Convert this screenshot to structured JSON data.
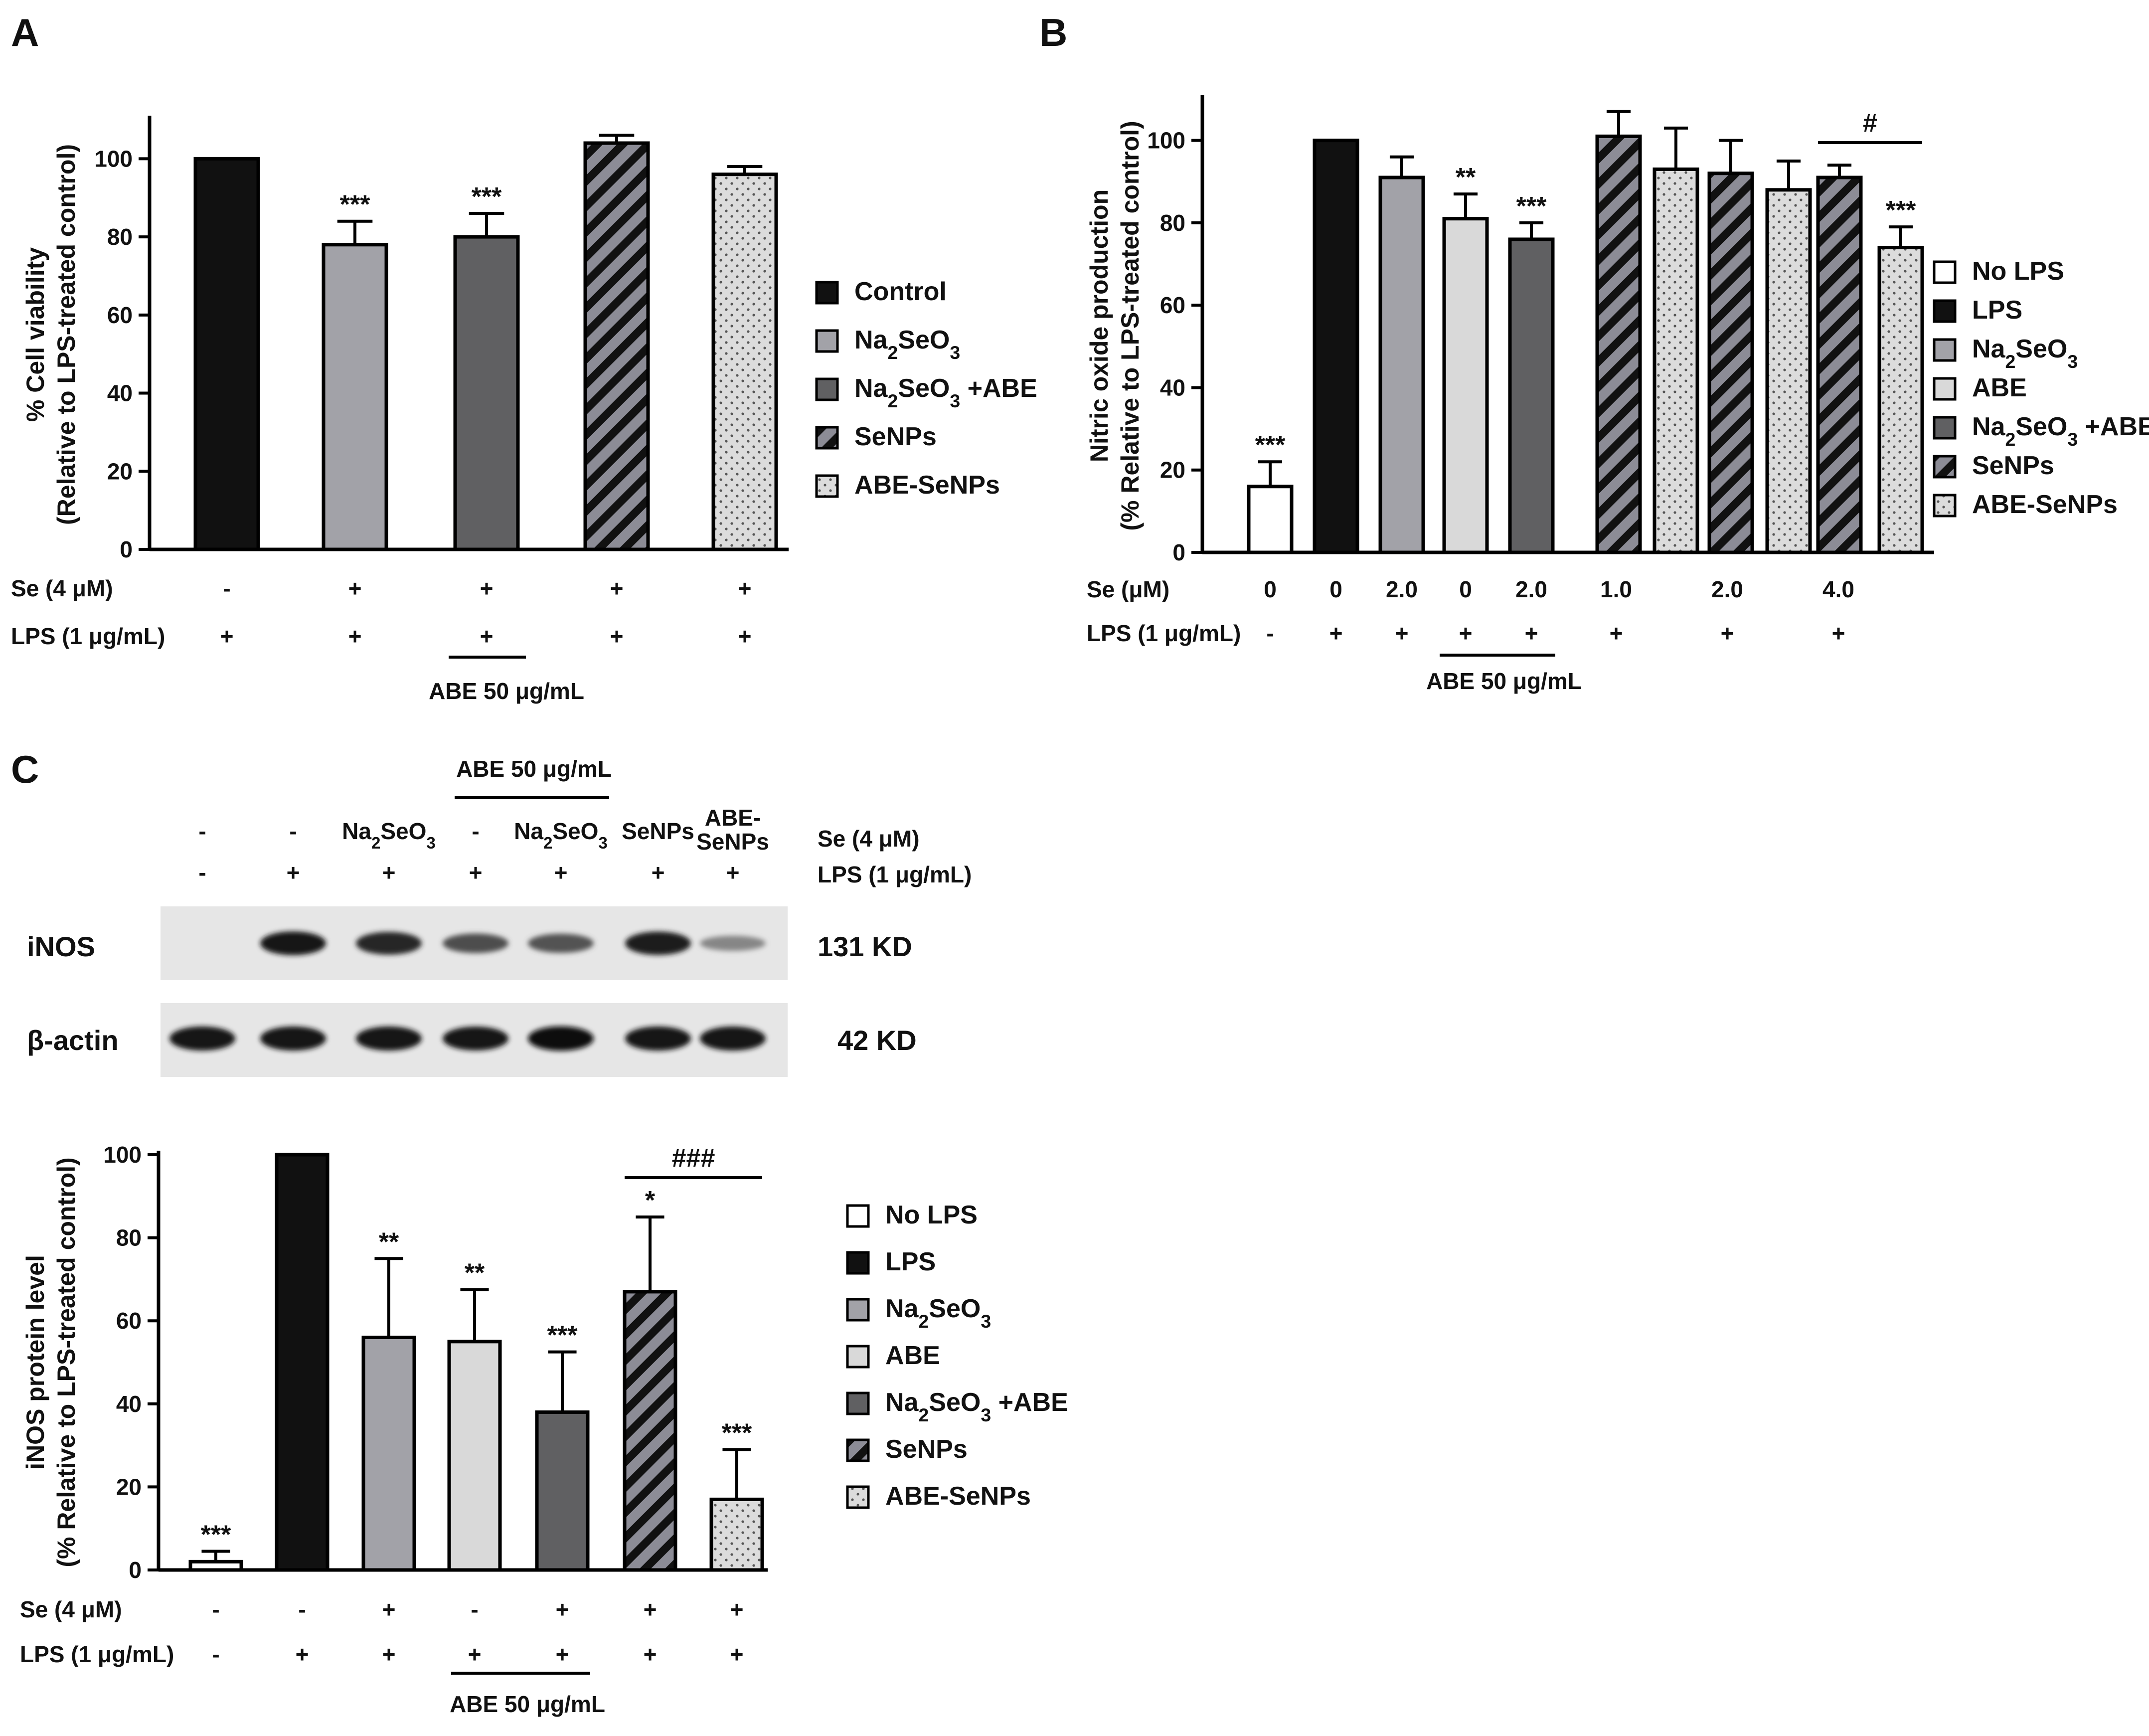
{
  "figure": {
    "panels": [
      {
        "id": "A",
        "label": "A"
      },
      {
        "id": "B",
        "label": "B"
      },
      {
        "id": "C",
        "label": "C"
      }
    ]
  },
  "colors": {
    "black": "#111111",
    "medium_gray": "#a2a2a8",
    "dark_gray": "#606062",
    "light_gray": "#d9d9d9",
    "white": "#ffffff",
    "stripe_base": "#8c8c96",
    "dot_base": "#dcdcdc"
  },
  "fill_legend": {
    "black": "solid black",
    "gray": "solid medium gray",
    "dark": "solid dark gray",
    "light": "solid light gray",
    "white": "white",
    "stripe": "diagonal hatching",
    "dots": "stippled"
  },
  "chart_data": [
    {
      "id": "A",
      "type": "bar",
      "ylabel_lines": [
        "% Cell viability",
        "(Relative to LPS-treated control)"
      ],
      "ylim": [
        0,
        110
      ],
      "yticks": [
        0,
        20,
        40,
        60,
        80,
        100
      ],
      "categories": [
        "Control",
        "Na2SeO3",
        "Na2SeO3+ABE",
        "SeNPs",
        "ABE-SeNPs"
      ],
      "values": [
        100,
        78,
        80,
        104,
        96
      ],
      "errors": [
        0,
        6,
        6,
        2,
        2
      ],
      "fills": [
        "black",
        "gray",
        "dark",
        "stripe",
        "dots"
      ],
      "significance": [
        "",
        "***",
        "***",
        "",
        ""
      ],
      "condition_rows": [
        {
          "label": "Se (4 μM)",
          "values": [
            "-",
            "+",
            "+",
            "+",
            "+"
          ]
        },
        {
          "label": "LPS (1 μg/mL)",
          "values": [
            "+",
            "+",
            "+",
            "+",
            "+"
          ]
        }
      ],
      "abe_label": "ABE 50 μg/mL",
      "legend": [
        {
          "text": "Control",
          "fill": "black"
        },
        {
          "text": "Na2SeO3",
          "fill": "gray"
        },
        {
          "text": "Na2SeO3 +ABE",
          "fill": "dark"
        },
        {
          "text": "SeNPs",
          "fill": "stripe"
        },
        {
          "text": "ABE-SeNPs",
          "fill": "dots"
        }
      ]
    },
    {
      "id": "B",
      "type": "bar",
      "ylabel_lines": [
        "Nitric oxide production",
        "(% Relative to LPS-treated control)"
      ],
      "ylim": [
        0,
        110
      ],
      "yticks": [
        0,
        20,
        40,
        60,
        80,
        100
      ],
      "categories": [
        "No LPS",
        "LPS",
        "Na2SeO3 2.0",
        "ABE",
        "Na2SeO3+ABE 2.0",
        "SeNPs 1.0",
        "ABE-SeNPs 1.0",
        "SeNPs 2.0",
        "ABE-SeNPs 2.0",
        "SeNPs 4.0",
        "ABE-SeNPs 4.0"
      ],
      "values": [
        16,
        100,
        91,
        81,
        76,
        101,
        93,
        92,
        88,
        91,
        74
      ],
      "errors": [
        6,
        0,
        5,
        6,
        4,
        6,
        10,
        8,
        7,
        3,
        5
      ],
      "fills": [
        "white",
        "black",
        "gray",
        "light",
        "dark",
        "stripe",
        "dots",
        "stripe",
        "dots",
        "stripe",
        "dots"
      ],
      "significance": [
        "***",
        "",
        "",
        "**",
        "***",
        "",
        "",
        "",
        "",
        "",
        "***"
      ],
      "bracket": {
        "from": 9,
        "to": 10,
        "text": "#"
      },
      "se_row_label": "Se (μM)",
      "se_values": [
        "0",
        "0",
        "2.0",
        "0",
        "2.0",
        "1.0",
        "2.0",
        "4.0"
      ],
      "lps_row_label": "LPS (1 μg/mL)",
      "lps_values": [
        "-",
        "+",
        "+",
        "+",
        "+",
        "+",
        "+",
        "+"
      ],
      "abe_label": "ABE 50 μg/mL",
      "legend": [
        {
          "text": "No LPS",
          "fill": "white"
        },
        {
          "text": "LPS",
          "fill": "black"
        },
        {
          "text": "Na2SeO3",
          "fill": "gray"
        },
        {
          "text": "ABE",
          "fill": "light"
        },
        {
          "text": "Na2SeO3 +ABE",
          "fill": "dark"
        },
        {
          "text": "SeNPs",
          "fill": "stripe"
        },
        {
          "text": "ABE-SeNPs",
          "fill": "dots"
        }
      ]
    },
    {
      "id": "C",
      "type": "bar",
      "ylabel_lines": [
        "iNOS protein level",
        "(% Relative to LPS-treated control)"
      ],
      "ylim": [
        0,
        100
      ],
      "yticks": [
        0,
        20,
        40,
        60,
        80,
        100
      ],
      "categories": [
        "No LPS",
        "LPS",
        "Na2SeO3",
        "ABE",
        "Na2SeO3+ABE",
        "SeNPs",
        "ABE-SeNPs"
      ],
      "values": [
        2,
        100,
        56,
        55,
        38,
        67,
        17
      ],
      "errors": [
        2.5,
        0,
        19,
        12.5,
        14.5,
        18,
        12
      ],
      "fills": [
        "white",
        "black",
        "gray",
        "light",
        "dark",
        "stripe",
        "dots"
      ],
      "significance": [
        "***",
        "",
        "**",
        "**",
        "***",
        "*",
        "***"
      ],
      "bracket": {
        "from": 5,
        "to": 6,
        "text": "###"
      },
      "condition_rows": [
        {
          "label": "Se (4 μM)",
          "values": [
            "-",
            "-",
            "+",
            "-",
            "+",
            "+",
            "+"
          ]
        },
        {
          "label": "LPS (1 μg/mL)",
          "values": [
            "-",
            "+",
            "+",
            "+",
            "+",
            "+",
            "+"
          ]
        }
      ],
      "abe_label": "ABE 50 μg/mL",
      "legend": [
        {
          "text": "No LPS",
          "fill": "white"
        },
        {
          "text": "LPS",
          "fill": "black"
        },
        {
          "text": "Na2SeO3",
          "fill": "gray"
        },
        {
          "text": "ABE",
          "fill": "light"
        },
        {
          "text": "Na2SeO3 +ABE",
          "fill": "dark"
        },
        {
          "text": "SeNPs",
          "fill": "stripe"
        },
        {
          "text": "ABE-SeNPs",
          "fill": "dots"
        }
      ]
    }
  ],
  "western_blot": {
    "abe_label": "ABE 50 μg/mL",
    "lane_headers": [
      "-",
      "-",
      "Na2SeO3",
      "-",
      "Na2SeO3",
      "SeNPs",
      "ABE-SeNPs"
    ],
    "se_label": "Se (4 μM)",
    "lps_label": "LPS (1 μg/mL)",
    "lps_values": [
      "-",
      "+",
      "+",
      "+",
      "+",
      "+",
      "+"
    ],
    "rows": [
      {
        "name": "iNOS",
        "size": "131 KD",
        "intensities": [
          0,
          0.92,
          0.86,
          0.64,
          0.62,
          0.9,
          0.35
        ]
      },
      {
        "name": "β-actin",
        "size": "42 KD",
        "intensities": [
          0.95,
          0.95,
          0.95,
          0.93,
          0.97,
          0.95,
          0.95
        ]
      }
    ]
  }
}
